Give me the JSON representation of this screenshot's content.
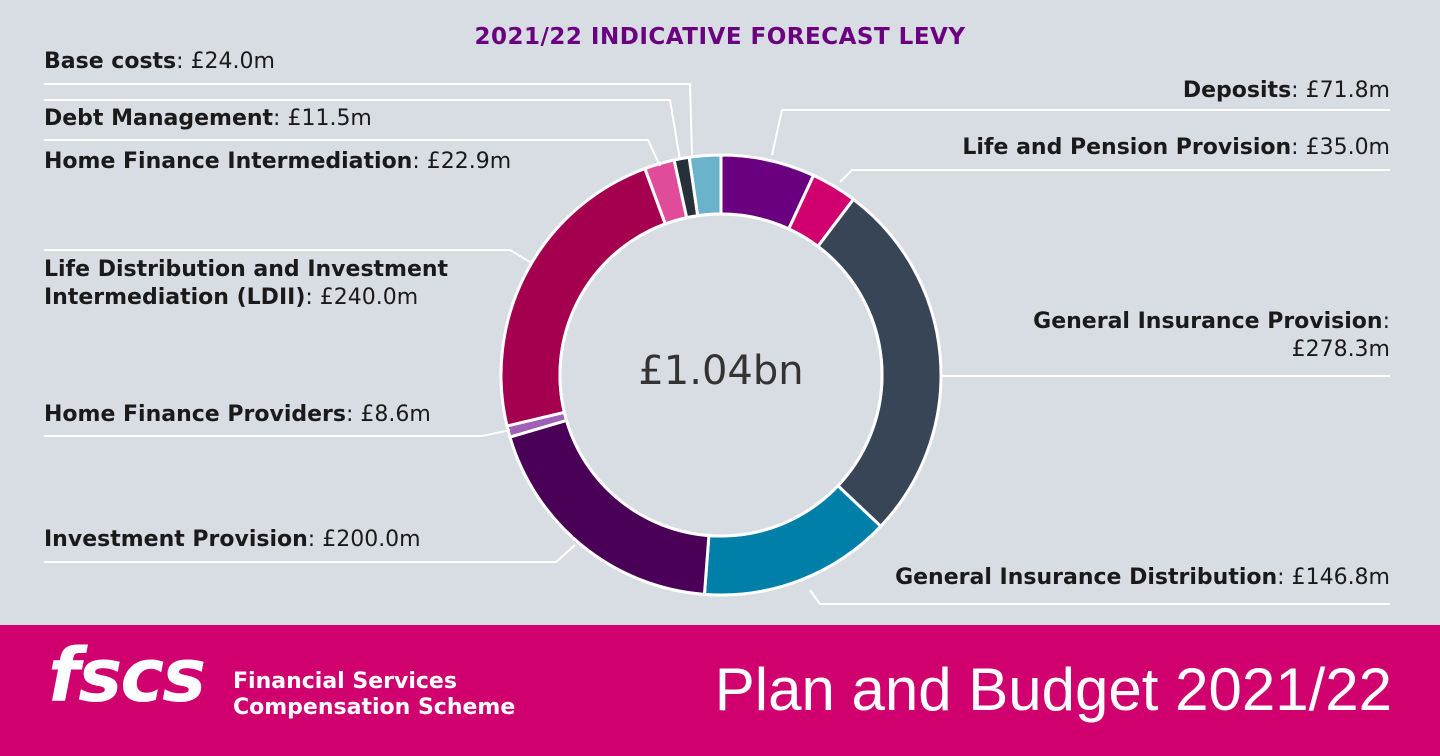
{
  "chart_data": {
    "type": "pie",
    "title": "2021/22 INDICATIVE FORECAST LEVY",
    "center_label": "£1.04bn",
    "donut": true,
    "slices": [
      {
        "name": "Deposits",
        "label": "£71.8m",
        "value": 71.8,
        "color": "#6a0080"
      },
      {
        "name": "Life and Pension Provision",
        "label": "£35.0m",
        "value": 35.0,
        "color": "#d0006f"
      },
      {
        "name": "General Insurance Provision",
        "label": "£278.3m",
        "value": 278.3,
        "color": "#374557"
      },
      {
        "name": "General Insurance Distribution",
        "label": "£146.8m",
        "value": 146.8,
        "color": "#0080a8"
      },
      {
        "name": "Investment Provision",
        "label": "£200.0m",
        "value": 200.0,
        "color": "#4b0058"
      },
      {
        "name": "Home Finance Providers",
        "label": "£8.6m",
        "value": 8.6,
        "color": "#a060b8"
      },
      {
        "name": "Life Distribution and Investment Intermediation (LDII)",
        "label": "£240.0m",
        "value": 240.0,
        "color": "#a5004f"
      },
      {
        "name": "Home Finance Intermediation",
        "label": "£22.9m",
        "value": 22.9,
        "color": "#e04c9a"
      },
      {
        "name": "Debt Management",
        "label": "£11.5m",
        "value": 11.5,
        "color": "#26303a"
      },
      {
        "name": "Base costs",
        "label": "£24.0m",
        "value": 24.0,
        "color": "#6ab3cb"
      }
    ]
  },
  "labels": {
    "ldii_line1": "Life Distribution and Investment",
    "ldii_line2": "Intermediation (LDII)",
    "gip_line1": "General Insurance Provision"
  },
  "footer": {
    "logo": "fscs",
    "org_line1": "Financial Services",
    "org_line2": "Compensation Scheme",
    "title": "Plan and Budget 2021/22",
    "background": "#d0006f"
  }
}
